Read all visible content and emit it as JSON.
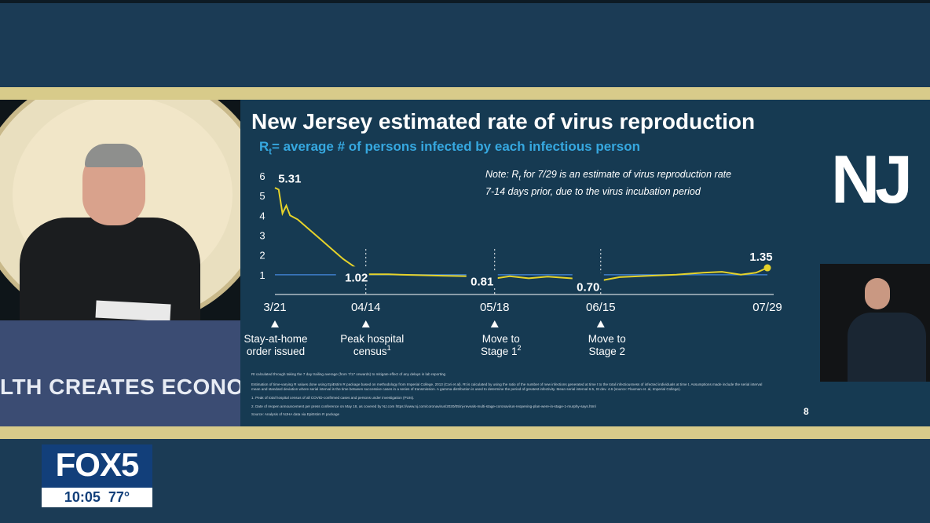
{
  "slide": {
    "title": "New Jersey estimated rate of virus reproduction",
    "subtitle_r": "R",
    "subtitle_sub": "t",
    "subtitle_rest": "= average # of persons infected by each infectious person",
    "note_line1_pre": "Note: R",
    "note_line1_sub": "t",
    "note_line1_post": " for 7/29 is an estimate of virus reproduction rate",
    "note_line2": "7-14 days prior, due to the virus incubation period",
    "page_number": "8",
    "footnotes": [
      "Rt calculated through taking the 7 day trailing average (from 7/17 onwards) to mitigate effect of any delays in lab reporting",
      "Estimation of time-varying R values done using EpiEstim R package based on methodology from Imperial College, 2013 (Cori et al). Rt is calculated by using the ratio of the number of new infections generated at time t to the total infectiousness of infected individuals at time t. Assumptions made include the serial interval",
      "mean and standard deviation where serial interval is the time between successive cases in a series of transmission. A gamma distribution is used to determine the period of greatest infectivity. Mean serial interval 6.5, St dev. 4.6 (source: Flaxman et. al, Imperial College).",
      "1. Peak of total hospital census of all COVID-confirmed cases and persons under investigation (PUIs).",
      "2. Date of reopen announcement per press conference on May 18, as covered by NJ.com https://www.nj.com/coronavirus/2020/05/nj-reveals-multi-stage-coronavirus-reopening-plan-were-in-stage-1-murphy-says.html",
      "Source: Analysis of NJHA data via EpiEstim R package"
    ]
  },
  "chart_data": {
    "type": "line",
    "title": "New Jersey estimated rate of virus reproduction",
    "x_tick_labels": [
      "3/21",
      "04/14",
      "05/18",
      "06/15",
      "07/29"
    ],
    "y_ticks": [
      "1",
      "2",
      "3",
      "4",
      "5",
      "6"
    ],
    "ylim": [
      0,
      6
    ],
    "reference_line": 1,
    "series": [
      {
        "color": "#e6d32a",
        "points": [
          [
            "3/21",
            5.4
          ],
          [
            "3/22",
            5.31
          ],
          [
            "3/23",
            4.1
          ],
          [
            "3/24",
            4.5
          ],
          [
            "3/25",
            4.0
          ],
          [
            "3/27",
            3.8
          ],
          [
            "3/30",
            3.3
          ],
          [
            "4/2",
            2.8
          ],
          [
            "4/5",
            2.3
          ],
          [
            "4/8",
            1.8
          ],
          [
            "4/11",
            1.4
          ],
          [
            "4/14",
            1.02
          ],
          [
            "4/20",
            1.02
          ],
          [
            "4/27",
            0.98
          ],
          [
            "5/4",
            0.95
          ],
          [
            "5/11",
            0.92
          ],
          [
            "5/15",
            0.85
          ],
          [
            "5/18",
            0.81
          ],
          [
            "5/22",
            0.92
          ],
          [
            "5/27",
            0.82
          ],
          [
            "6/1",
            0.9
          ],
          [
            "6/5",
            0.85
          ],
          [
            "6/10",
            0.78
          ],
          [
            "6/15",
            0.7
          ],
          [
            "6/20",
            0.88
          ],
          [
            "6/28",
            0.95
          ],
          [
            "7/5",
            1.0
          ],
          [
            "7/12",
            1.1
          ],
          [
            "7/17",
            1.15
          ],
          [
            "7/22",
            1.0
          ],
          [
            "7/26",
            1.1
          ],
          [
            "7/29",
            1.35
          ]
        ]
      }
    ],
    "data_labels": [
      {
        "x": "3/22",
        "value": "5.31"
      },
      {
        "x": "4/14",
        "value": "1.02"
      },
      {
        "x": "5/18",
        "value": "0.81"
      },
      {
        "x": "6/15",
        "value": "0.70"
      },
      {
        "x": "7/29",
        "value": "1.35"
      }
    ],
    "events": [
      {
        "x": "3/21",
        "lines": [
          "Stay-at-home",
          "order issued"
        ]
      },
      {
        "x": "4/14",
        "lines": [
          "Peak hospital",
          "census"
        ],
        "sup": "1"
      },
      {
        "x": "5/18",
        "lines": [
          "Move to",
          "Stage 1"
        ],
        "sup": "2"
      },
      {
        "x": "6/15",
        "lines": [
          "Move to",
          "Stage 2"
        ]
      }
    ]
  },
  "video": {
    "podium_text": "LTH CREATES ECONO"
  },
  "branding": {
    "nj_logo": "NJ",
    "station": "FOX5",
    "time": "10:05",
    "temp": "77°"
  },
  "colors": {
    "slide_bg": "#163a52",
    "accent_blue": "#36a8e0",
    "line_yellow": "#e6d32a",
    "ref_line": "#3d7cc9",
    "gold_bar": "#d8cb8a",
    "fox_blue": "#123f7a"
  }
}
